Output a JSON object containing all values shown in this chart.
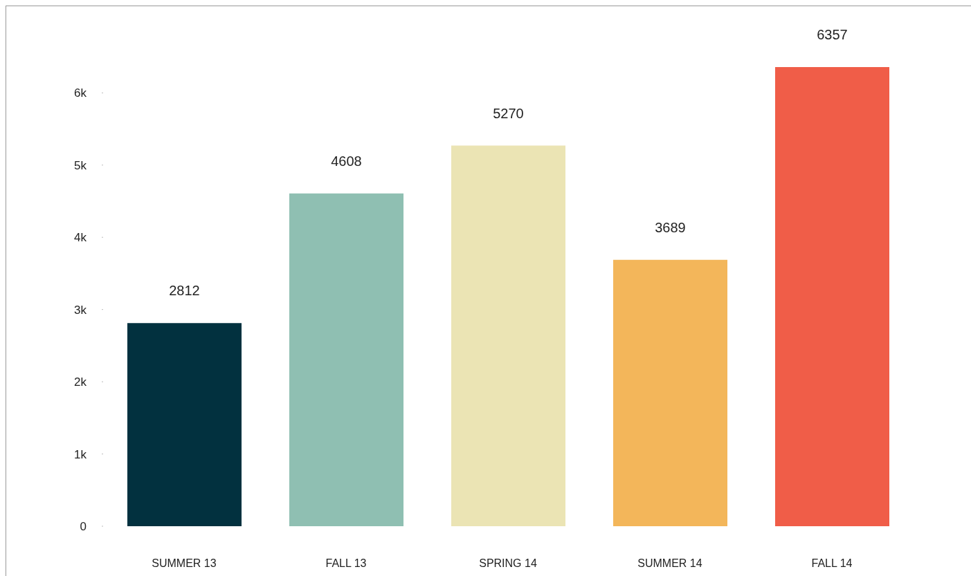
{
  "chart_data": {
    "type": "bar",
    "categories": [
      "SUMMER 13",
      "FALL 13",
      "SPRING 14",
      "SUMMER 14",
      "FALL 14"
    ],
    "values": [
      2812,
      4608,
      5270,
      3689,
      6357
    ],
    "colors": [
      "#02313f",
      "#8fbfb2",
      "#ebe4b4",
      "#f3b65a",
      "#f05d48"
    ],
    "ylim": [
      0,
      6357
    ],
    "yticks": [
      0,
      {
        "value": 1000,
        "label": "1k"
      },
      {
        "value": 2000,
        "label": "2k"
      },
      {
        "value": 3000,
        "label": "3k"
      },
      {
        "value": 4000,
        "label": "4k"
      },
      {
        "value": 5000,
        "label": "5k"
      },
      {
        "value": 6000,
        "label": "6k"
      }
    ],
    "data_labels": true,
    "grid": false,
    "legend": false
  }
}
